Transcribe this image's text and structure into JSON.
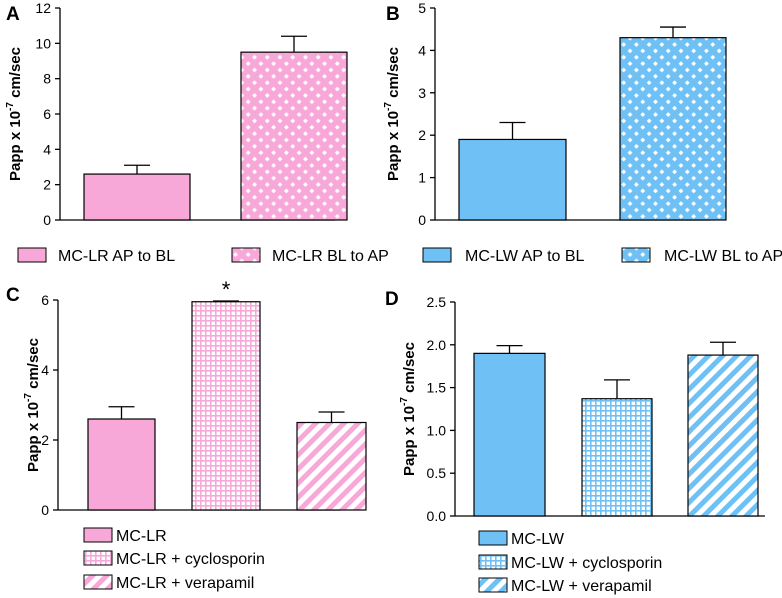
{
  "colors": {
    "pink": "#f7a8d8",
    "blue": "#6ec0f5"
  },
  "chart_data": [
    {
      "panel_label": "A",
      "type": "bar",
      "ylabel": "Papp x 10",
      "ylabel_exp": "-7",
      "ylabel_suffix": " cm/sec",
      "ylim": [
        0,
        12
      ],
      "yticks": [
        0,
        2,
        4,
        6,
        8,
        10,
        12
      ],
      "ytick_labels": [
        "0",
        "2",
        "4",
        "6",
        "8",
        "10",
        "12"
      ],
      "categories": [
        "MC-LR AP to BL",
        "MC-LR BL to AP"
      ],
      "values": [
        2.6,
        9.5
      ],
      "errors": [
        0.5,
        0.9
      ],
      "patterns": [
        "solid",
        "dots"
      ],
      "color": "pink",
      "annotations": []
    },
    {
      "panel_label": "B",
      "type": "bar",
      "ylabel": "Papp x 10",
      "ylabel_exp": "-7",
      "ylabel_suffix": " cm/sec",
      "ylim": [
        0,
        5
      ],
      "yticks": [
        0,
        1,
        2,
        3,
        4,
        5
      ],
      "ytick_labels": [
        "0",
        "1",
        "2",
        "3",
        "4",
        "5"
      ],
      "categories": [
        "MC-LW AP to BL",
        "MC-LW BL to AP"
      ],
      "values": [
        1.9,
        4.3
      ],
      "errors": [
        0.4,
        0.25
      ],
      "patterns": [
        "solid",
        "dots"
      ],
      "color": "blue",
      "annotations": []
    },
    {
      "panel_label": "C",
      "type": "bar",
      "ylabel": "Papp x 10",
      "ylabel_exp": "-7",
      "ylabel_suffix": " cm/sec",
      "ylim": [
        0,
        6
      ],
      "yticks": [
        0,
        2,
        4,
        6
      ],
      "ytick_labels": [
        "0",
        "2",
        "4",
        "6"
      ],
      "categories": [
        "MC-LR",
        "MC-LR + cyclosporin",
        "MC-LR + verapamil"
      ],
      "values": [
        2.6,
        5.95,
        2.5
      ],
      "errors": [
        0.35,
        0.02,
        0.3
      ],
      "patterns": [
        "solid",
        "grid",
        "diag"
      ],
      "color": "pink",
      "annotations": [
        {
          "bar": 1,
          "text": "*"
        }
      ]
    },
    {
      "panel_label": "D",
      "type": "bar",
      "ylabel": "Papp x 10",
      "ylabel_exp": "-7",
      "ylabel_suffix": " cm/sec",
      "ylim": [
        0,
        2.5
      ],
      "yticks": [
        0,
        0.5,
        1.0,
        1.5,
        2.0,
        2.5
      ],
      "ytick_labels": [
        "0.0",
        "0.5",
        "1.0",
        "1.5",
        "2.0",
        "2.5"
      ],
      "categories": [
        "MC-LW",
        "MC-LW + cyclosporin",
        "MC-LW + verapamil"
      ],
      "values": [
        1.9,
        1.37,
        1.88
      ],
      "errors": [
        0.09,
        0.22,
        0.15
      ],
      "patterns": [
        "solid",
        "grid",
        "diag"
      ],
      "color": "blue",
      "annotations": []
    }
  ]
}
